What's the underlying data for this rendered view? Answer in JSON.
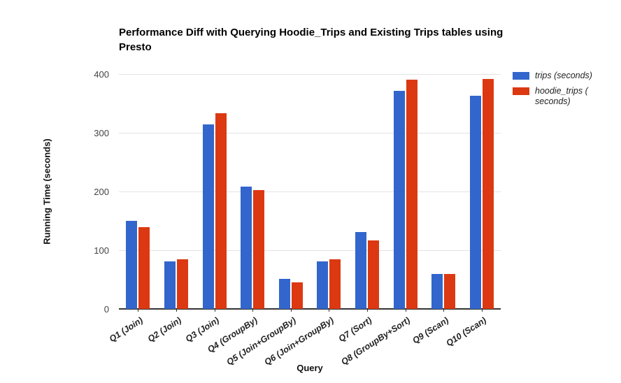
{
  "title": "Performance Diff with Querying Hoodie_Trips and Existing Trips tables using Presto",
  "axes": {
    "y_title": "Running Time (seconds)",
    "x_title": "Query",
    "y_ticks": [
      0,
      100,
      200,
      300,
      400
    ]
  },
  "legend": {
    "items": [
      {
        "label": "trips (seconds)",
        "color": "#3366CC"
      },
      {
        "label": "hoodie_trips ( seconds)",
        "color": "#DC3912"
      }
    ]
  },
  "chart_data": {
    "type": "bar",
    "title": "Performance Diff with Querying Hoodie_Trips and Existing Trips tables using Presto",
    "xlabel": "Query",
    "ylabel": "Running Time (seconds)",
    "ylim": [
      0,
      400
    ],
    "grid": true,
    "legend_position": "right",
    "categories": [
      "Q1 (Join)",
      "Q2 (Join)",
      "Q3 (Join)",
      "Q4 (GroupBy)",
      "Q5 (Join+GroupBy)",
      "Q6 (Join+GroupBy)",
      "Q7 (Sort)",
      "Q8 (GroupBy+Sort)",
      "Q9 (Scan)",
      "Q10 (Scan)"
    ],
    "series": [
      {
        "name": "trips (seconds)",
        "color": "#3366CC",
        "values": [
          150,
          81,
          314,
          208,
          51,
          81,
          131,
          371,
          60,
          363
        ]
      },
      {
        "name": "hoodie_trips ( seconds)",
        "color": "#DC3912",
        "values": [
          139,
          84,
          333,
          202,
          45,
          85,
          117,
          390,
          59,
          392
        ]
      }
    ]
  }
}
